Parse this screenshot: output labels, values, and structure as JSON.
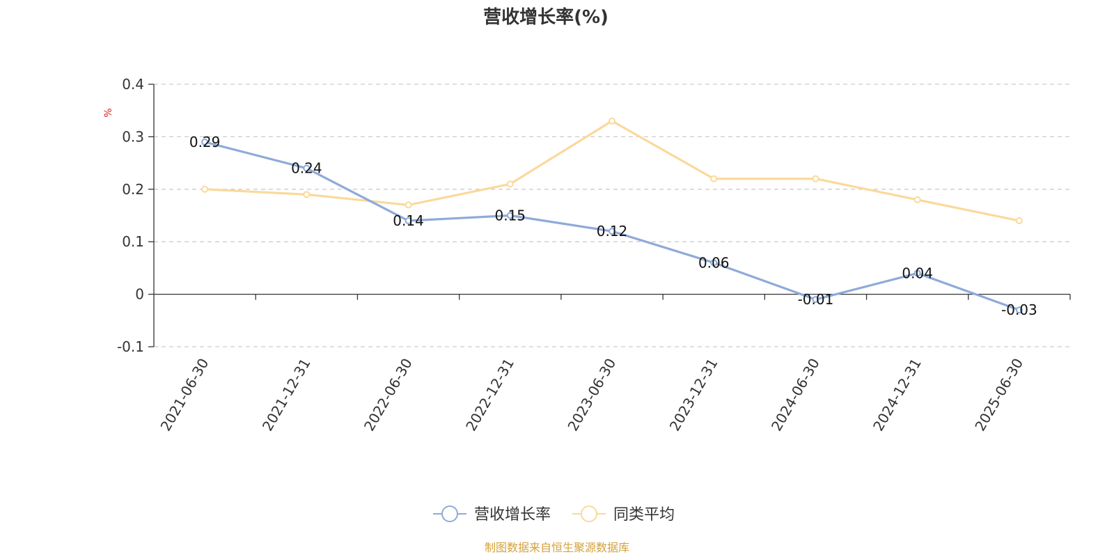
{
  "chart_data": {
    "type": "line",
    "title": "营收增长率(%)",
    "ylabel": "%",
    "ylim": [
      -0.1,
      0.4
    ],
    "yticks": [
      "0.4",
      "0.3",
      "0.2",
      "0.1",
      "0",
      "-0.1"
    ],
    "ytick_values": [
      0.4,
      0.3,
      0.2,
      0.1,
      0,
      -0.1
    ],
    "categories": [
      "2021-06-30",
      "2021-12-31",
      "2022-06-30",
      "2022-12-31",
      "2023-06-30",
      "2023-12-31",
      "2024-06-30",
      "2024-12-31",
      "2025-06-30"
    ],
    "grid": true,
    "legend_position": "bottom",
    "series": [
      {
        "name": "营收增长率",
        "color": "#8eaad8",
        "values": [
          0.29,
          0.24,
          0.14,
          0.15,
          0.12,
          0.06,
          -0.01,
          0.04,
          -0.03
        ],
        "labels": [
          "0.29",
          "0.24",
          "0.14",
          "0.15",
          "0.12",
          "0.06",
          "-0.01",
          "0.04",
          "-0.03"
        ]
      },
      {
        "name": "同类平均",
        "color": "#fbd99a",
        "values": [
          0.2,
          0.19,
          0.17,
          0.21,
          0.33,
          0.22,
          0.22,
          0.18,
          0.14
        ]
      }
    ],
    "source": "制图数据来自恒生聚源数据库",
    "colors": {
      "axis": "#333333",
      "grid": "#cccccc",
      "unit": "#e02020",
      "source": "#d4a23c"
    }
  }
}
